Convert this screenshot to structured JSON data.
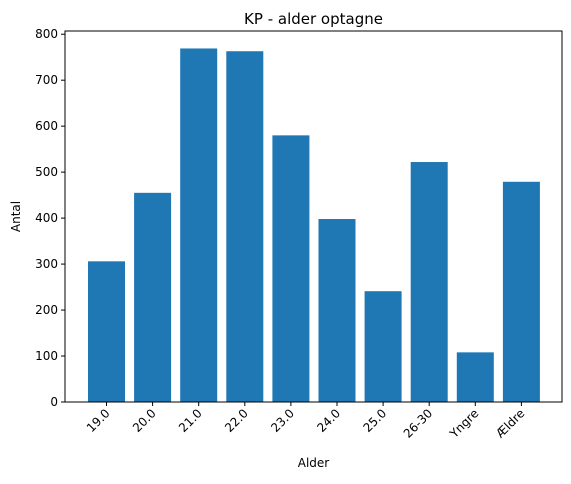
{
  "chart_data": {
    "type": "bar",
    "title": "KP - alder optagne",
    "xlabel": "Alder",
    "ylabel": "Antal",
    "categories": [
      "19.0",
      "20.0",
      "21.0",
      "22.0",
      "23.0",
      "24.0",
      "25.0",
      "26-30",
      "Yngre",
      "Ældre"
    ],
    "values": [
      306,
      455,
      769,
      763,
      580,
      398,
      241,
      522,
      108,
      479
    ],
    "ylim": [
      0,
      800
    ],
    "yticks": [
      "0",
      "100",
      "200",
      "300",
      "400",
      "500",
      "600",
      "700",
      "800"
    ],
    "bar_color": "#1f77b4",
    "grid": false,
    "legend": "none",
    "xtick_rotation": "45 degrees"
  }
}
